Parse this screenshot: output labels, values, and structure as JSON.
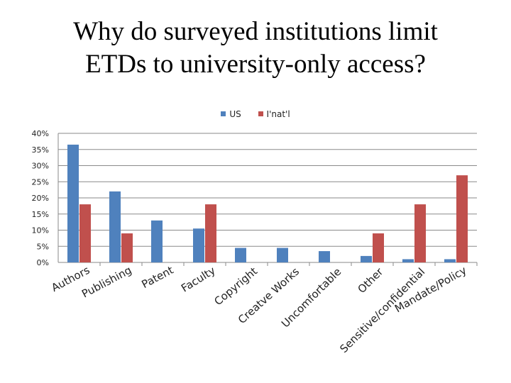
{
  "title_lines": [
    "Why do surveyed institutions limit",
    "ETDs to university-only access?"
  ],
  "chart_data": {
    "type": "bar",
    "title": "Why do surveyed institutions limit ETDs to university-only access?",
    "categories": [
      "Authors",
      "Publishing",
      "Patent",
      "Faculty",
      "Copyright",
      "Creatve Works",
      "Uncomfortable",
      "Other",
      "Sensitive/confidential",
      "Mandate/Policy"
    ],
    "series": [
      {
        "name": "US",
        "color": "#4F81BD",
        "values": [
          36.5,
          22,
          13,
          10.5,
          4.5,
          4.5,
          3.5,
          2,
          1,
          1
        ]
      },
      {
        "name": "I'nat'l",
        "color": "#C0504D",
        "values": [
          18,
          9,
          0,
          18,
          0,
          0,
          0,
          9,
          18,
          27
        ]
      }
    ],
    "ylim": [
      0,
      40
    ],
    "yticks": [
      "0%",
      "5%",
      "10%",
      "15%",
      "20%",
      "25%",
      "30%",
      "35%",
      "40%"
    ],
    "legend_position": "top",
    "grid": true
  }
}
